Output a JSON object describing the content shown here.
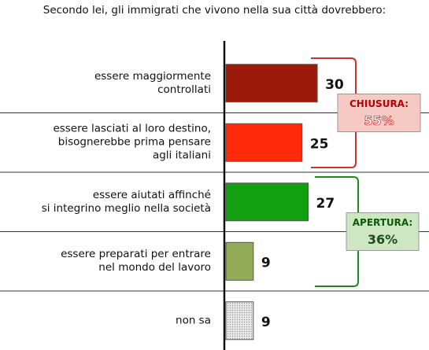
{
  "chart_data": {
    "type": "hbar",
    "title": "Secondo lei, gli immigrati che vivono nella sua città dovrebbero:",
    "categories": [
      "essere maggiormente\ncontrollati",
      "essere lasciati al loro destino,\nbisognerebbe prima pensare\nagli italiani",
      "essere aiutati affinché\nsi integrino meglio nella società",
      "essere preparati per entrare\nnel mondo del lavoro",
      "non sa"
    ],
    "values": [
      30,
      25,
      27,
      9,
      9
    ],
    "colors": [
      "#9b1a0c",
      "#ff2a0a",
      "#12a012",
      "#93ab56",
      "#d9d9d9"
    ],
    "groups": [
      {
        "label": "CHIUSURA:",
        "value": 55,
        "value_label": "55%",
        "color": "#c0392b",
        "rows": [
          0,
          1
        ]
      },
      {
        "label": "APERTURA:",
        "value": 36,
        "value_label": "36%",
        "color": "#1c8c1c",
        "rows": [
          2,
          3
        ]
      }
    ]
  }
}
